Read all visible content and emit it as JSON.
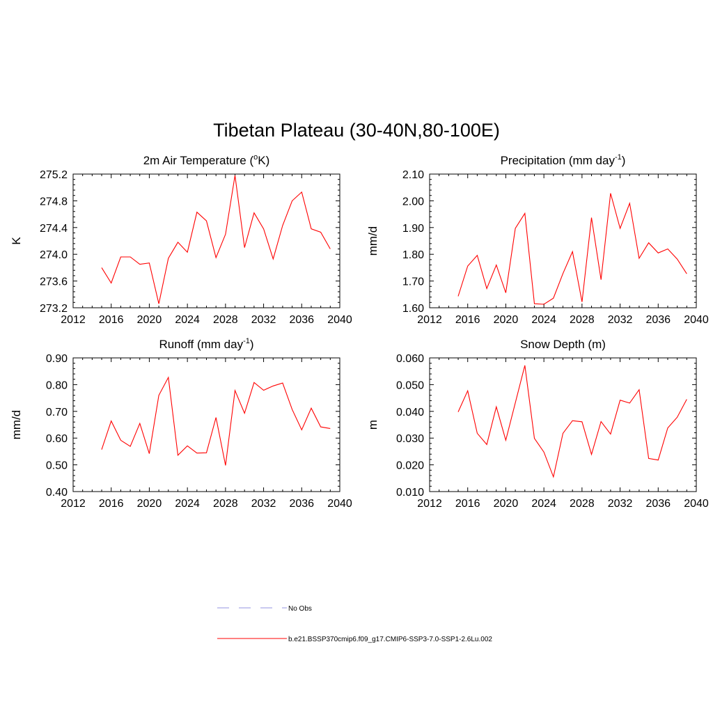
{
  "figure": {
    "title": "Tibetan Plateau (30-40N,80-100E)"
  },
  "legend": {
    "items": [
      {
        "label": "No Obs",
        "color": "#a9a9e6",
        "style": "dashed"
      },
      {
        "label": "b.e21.BSSP370cmip6.f09_g17.CMIP6-SSP3-7.0-SSP1-2.6Lu.002",
        "color": "#ff0000",
        "style": "solid"
      }
    ]
  },
  "chart_data": [
    {
      "type": "line",
      "title_main": "2m Air Temperature (",
      "title_sup": "o",
      "title_tail": "K)",
      "ylabel": "K",
      "xlim": [
        2012,
        2040
      ],
      "xticks": [
        2012,
        2016,
        2020,
        2024,
        2028,
        2032,
        2036,
        2040
      ],
      "ylim": [
        273.2,
        275.2
      ],
      "yticks": [
        "273.2",
        "273.6",
        "274.0",
        "274.4",
        "274.8",
        "275.2"
      ],
      "series": [
        {
          "color": "#ff0000",
          "x": [
            2015,
            2016,
            2017,
            2018,
            2019,
            2020,
            2021,
            2022,
            2023,
            2024,
            2025,
            2026,
            2027,
            2028,
            2029,
            2030,
            2031,
            2032,
            2033,
            2034,
            2035,
            2036,
            2037,
            2038,
            2039
          ],
          "y": [
            273.8,
            273.57,
            273.96,
            273.96,
            273.85,
            273.87,
            273.26,
            273.94,
            274.18,
            274.03,
            274.63,
            274.5,
            273.95,
            274.3,
            275.18,
            274.1,
            274.62,
            274.38,
            273.93,
            274.43,
            274.8,
            274.93,
            274.38,
            274.33,
            274.08
          ]
        }
      ]
    },
    {
      "type": "line",
      "title_main": "Precipitation (mm day",
      "title_sup": "-1",
      "title_tail": ")",
      "ylabel": "mm/d",
      "xlim": [
        2012,
        2040
      ],
      "xticks": [
        2012,
        2016,
        2020,
        2024,
        2028,
        2032,
        2036,
        2040
      ],
      "ylim": [
        1.6,
        2.1
      ],
      "yticks": [
        "1.60",
        "1.70",
        "1.80",
        "1.90",
        "2.00",
        "2.10"
      ],
      "series": [
        {
          "color": "#ff0000",
          "x": [
            2015,
            2016,
            2017,
            2018,
            2019,
            2020,
            2021,
            2022,
            2023,
            2024,
            2025,
            2026,
            2027,
            2028,
            2029,
            2030,
            2031,
            2032,
            2033,
            2034,
            2035,
            2036,
            2037,
            2038,
            2039
          ],
          "y": [
            1.643,
            1.756,
            1.796,
            1.672,
            1.76,
            1.656,
            1.897,
            1.953,
            1.615,
            1.613,
            1.636,
            1.728,
            1.81,
            1.622,
            1.937,
            1.705,
            2.028,
            1.897,
            1.991,
            1.785,
            1.843,
            1.805,
            1.82,
            1.782,
            1.727
          ]
        }
      ]
    },
    {
      "type": "line",
      "title_main": "Runoff (mm day",
      "title_sup": "-1",
      "title_tail": ")",
      "ylabel": "mm/d",
      "xlim": [
        2012,
        2040
      ],
      "xticks": [
        2012,
        2016,
        2020,
        2024,
        2028,
        2032,
        2036,
        2040
      ],
      "ylim": [
        0.4,
        0.9
      ],
      "yticks": [
        "0.40",
        "0.50",
        "0.60",
        "0.70",
        "0.80",
        "0.90"
      ],
      "series": [
        {
          "color": "#ff0000",
          "x": [
            2015,
            2016,
            2017,
            2018,
            2019,
            2020,
            2021,
            2022,
            2023,
            2024,
            2025,
            2026,
            2027,
            2028,
            2029,
            2030,
            2031,
            2032,
            2033,
            2034,
            2035,
            2036,
            2037,
            2038,
            2039
          ],
          "y": [
            0.557,
            0.664,
            0.592,
            0.569,
            0.655,
            0.542,
            0.76,
            0.827,
            0.536,
            0.571,
            0.544,
            0.545,
            0.677,
            0.498,
            0.778,
            0.693,
            0.808,
            0.779,
            0.795,
            0.806,
            0.707,
            0.631,
            0.712,
            0.642,
            0.636
          ]
        }
      ]
    },
    {
      "type": "line",
      "title_main": "Snow Depth (m)",
      "title_sup": "",
      "title_tail": "",
      "ylabel": "m",
      "xlim": [
        2012,
        2040
      ],
      "xticks": [
        2012,
        2016,
        2020,
        2024,
        2028,
        2032,
        2036,
        2040
      ],
      "ylim": [
        0.01,
        0.06
      ],
      "yticks": [
        "0.010",
        "0.020",
        "0.030",
        "0.040",
        "0.050",
        "0.060"
      ],
      "series": [
        {
          "color": "#ff0000",
          "x": [
            2015,
            2016,
            2017,
            2018,
            2019,
            2020,
            2021,
            2022,
            2023,
            2024,
            2025,
            2026,
            2027,
            2028,
            2029,
            2030,
            2031,
            2032,
            2033,
            2034,
            2035,
            2036,
            2037,
            2038,
            2039
          ],
          "y": [
            0.0398,
            0.0477,
            0.0318,
            0.0276,
            0.0417,
            0.0292,
            0.0432,
            0.0572,
            0.0299,
            0.0248,
            0.0155,
            0.0318,
            0.0365,
            0.0361,
            0.0239,
            0.0362,
            0.0315,
            0.0442,
            0.0431,
            0.0481,
            0.0224,
            0.0218,
            0.0338,
            0.0378,
            0.0445
          ]
        }
      ]
    }
  ]
}
